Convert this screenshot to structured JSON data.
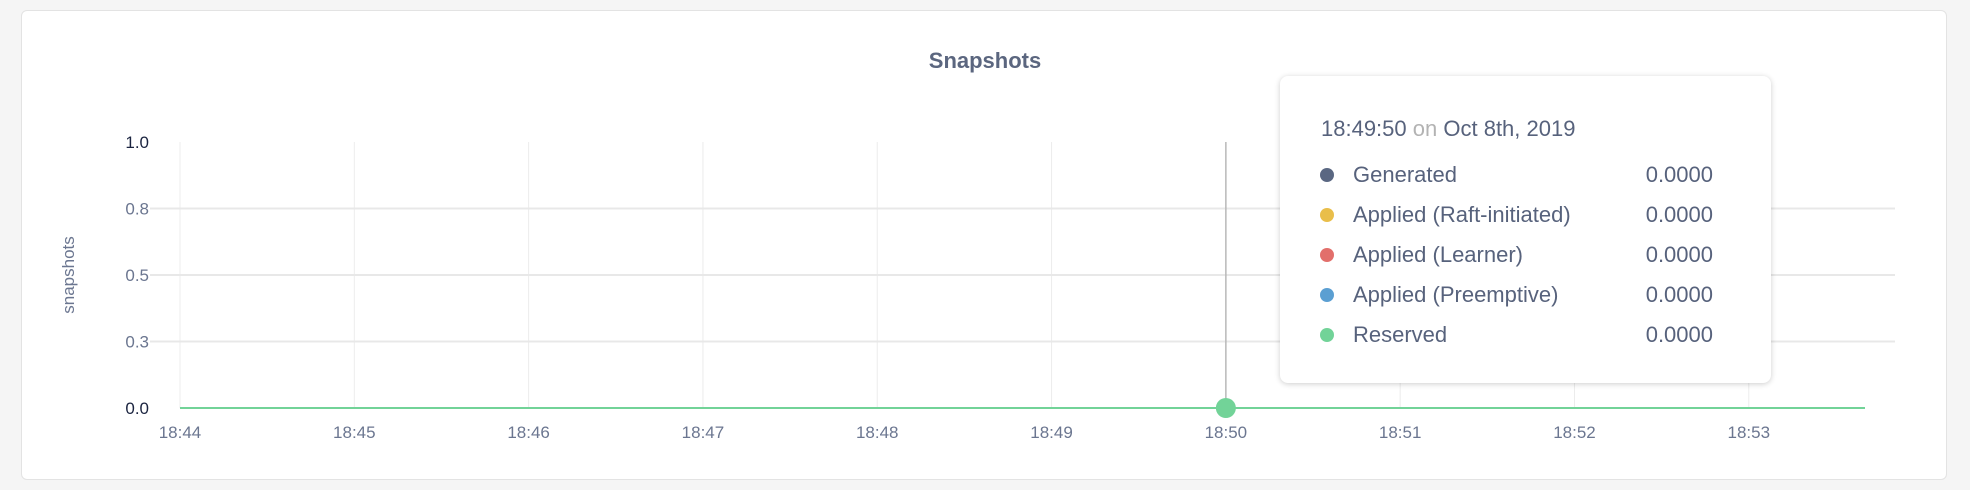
{
  "chart_data": {
    "type": "line",
    "title": "Snapshots",
    "ylabel": "snapshots",
    "xlabel": "",
    "ylim": [
      0,
      1.0
    ],
    "y_ticks": [
      {
        "value": 0,
        "label": "0.0"
      },
      {
        "value": 0.25,
        "label": "0.3"
      },
      {
        "value": 0.5,
        "label": "0.5"
      },
      {
        "value": 0.75,
        "label": "0.8"
      },
      {
        "value": 1.0,
        "label": "1.0"
      }
    ],
    "xlim": [
      "18:44:00",
      "18:53:40"
    ],
    "x_ticks": [
      "18:44",
      "18:45",
      "18:46",
      "18:47",
      "18:48",
      "18:49",
      "18:50",
      "18:51",
      "18:52",
      "18:53"
    ],
    "grid": true,
    "series": [
      {
        "name": "Generated",
        "color": "#5a6782",
        "x": [
          "18:44:00",
          "18:53:40"
        ],
        "values": [
          0,
          0
        ]
      },
      {
        "name": "Applied (Raft-initiated)",
        "color": "#e9be4a",
        "x": [
          "18:44:00",
          "18:53:40"
        ],
        "values": [
          0,
          0
        ]
      },
      {
        "name": "Applied (Learner)",
        "color": "#e26f6b",
        "x": [
          "18:44:00",
          "18:53:40"
        ],
        "values": [
          0,
          0
        ]
      },
      {
        "name": "Applied (Preemptive)",
        "color": "#5b9fd2",
        "x": [
          "18:44:00",
          "18:53:40"
        ],
        "values": [
          0,
          0
        ]
      },
      {
        "name": "Reserved",
        "color": "#72d398",
        "x": [
          "18:44:00",
          "18:53:40"
        ],
        "values": [
          0,
          0
        ]
      }
    ],
    "hover": {
      "x": "18:50",
      "time": "18:49:50",
      "on": "on",
      "date": "Oct 8th, 2019",
      "values": [
        "0.0000",
        "0.0000",
        "0.0000",
        "0.0000",
        "0.0000"
      ]
    }
  }
}
